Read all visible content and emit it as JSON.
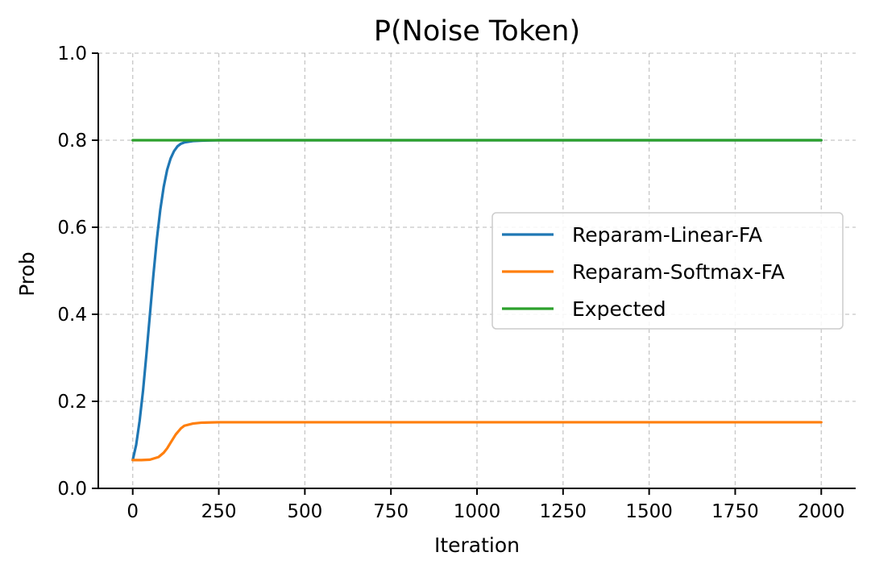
{
  "chart_data": {
    "type": "line",
    "title": "P(Noise Token)",
    "xlabel": "Iteration",
    "ylabel": "Prob",
    "xlim": [
      -100,
      2100
    ],
    "ylim": [
      0.0,
      1.0
    ],
    "xticks": [
      0,
      250,
      500,
      750,
      1000,
      1250,
      1500,
      1750,
      2000
    ],
    "xtick_labels": [
      "0",
      "250",
      "500",
      "750",
      "1000",
      "1250",
      "1500",
      "1750",
      "2000"
    ],
    "yticks": [
      0.0,
      0.2,
      0.4,
      0.6,
      0.8,
      1.0
    ],
    "ytick_labels": [
      "0.0",
      "0.2",
      "0.4",
      "0.6",
      "0.8",
      "1.0"
    ],
    "grid": true,
    "legend_position": "center-right",
    "series": [
      {
        "name": "Reparam-Linear-FA",
        "color": "#1f77b4",
        "x": [
          0,
          10,
          20,
          30,
          40,
          50,
          60,
          70,
          80,
          90,
          100,
          110,
          120,
          130,
          140,
          150,
          175,
          200,
          250,
          300,
          500,
          1000,
          1500,
          2000
        ],
        "y": [
          0.065,
          0.1,
          0.155,
          0.225,
          0.31,
          0.4,
          0.49,
          0.572,
          0.64,
          0.693,
          0.732,
          0.758,
          0.775,
          0.786,
          0.792,
          0.795,
          0.798,
          0.799,
          0.8,
          0.8,
          0.8,
          0.8,
          0.8,
          0.8
        ]
      },
      {
        "name": "Reparam-Softmax-FA",
        "color": "#ff7f0e",
        "x": [
          0,
          25,
          50,
          75,
          90,
          100,
          110,
          125,
          140,
          150,
          175,
          200,
          250,
          300,
          500,
          1000,
          1500,
          2000
        ],
        "y": [
          0.065,
          0.065,
          0.066,
          0.072,
          0.082,
          0.092,
          0.105,
          0.124,
          0.138,
          0.144,
          0.149,
          0.151,
          0.152,
          0.152,
          0.152,
          0.152,
          0.152,
          0.152
        ]
      },
      {
        "name": "Expected",
        "color": "#2ca02c",
        "x": [
          0,
          2000
        ],
        "y": [
          0.8,
          0.8
        ]
      }
    ]
  }
}
